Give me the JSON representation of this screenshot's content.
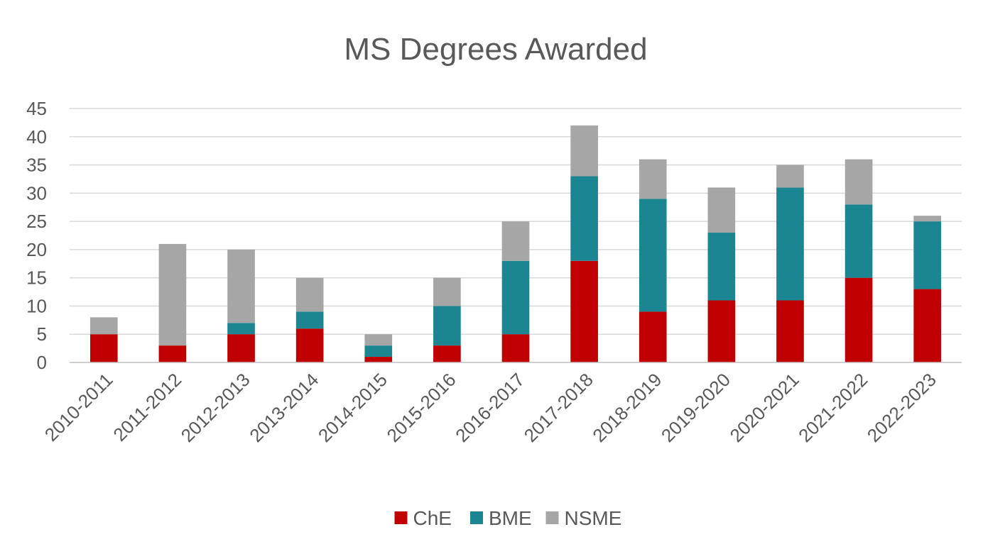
{
  "chart_data": {
    "type": "bar",
    "stacked": true,
    "title": "MS Degrees Awarded",
    "xlabel": "",
    "ylabel": "",
    "ylim": [
      0,
      45
    ],
    "yticks": [
      0,
      5,
      10,
      15,
      20,
      25,
      30,
      35,
      40,
      45
    ],
    "grid": true,
    "legend_position": "bottom",
    "categories": [
      "2010-2011",
      "2011-2012",
      "2012-2013",
      "2013-2014",
      "2014-2015",
      "2015-2016",
      "2016-2017",
      "2017-2018",
      "2018-2019",
      "2019-2020",
      "2020-2021",
      "2021-2022",
      "2022-2023"
    ],
    "series": [
      {
        "name": "ChE",
        "color": "#c00000",
        "values": [
          5,
          3,
          5,
          6,
          1,
          3,
          5,
          18,
          9,
          11,
          11,
          15,
          13
        ]
      },
      {
        "name": "BME",
        "color": "#1b8591",
        "values": [
          0,
          0,
          2,
          3,
          2,
          7,
          13,
          15,
          20,
          12,
          20,
          13,
          12
        ]
      },
      {
        "name": "NSME",
        "color": "#a6a6a6",
        "values": [
          3,
          18,
          13,
          6,
          2,
          5,
          7,
          9,
          7,
          8,
          4,
          8,
          1
        ]
      }
    ]
  }
}
